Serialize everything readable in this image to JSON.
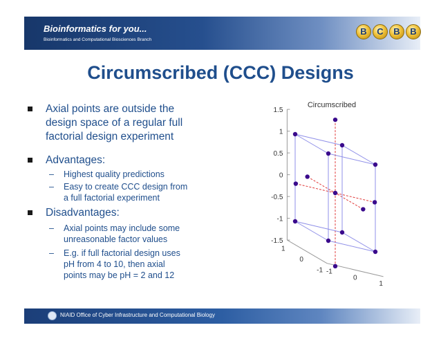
{
  "header": {
    "title": "Bioinformatics for you...",
    "subtitle": "Bioinformatics and Computational Biosciences Branch",
    "logo_letters": [
      "B",
      "C",
      "B",
      "B"
    ]
  },
  "slide_title": "Circumscribed (CCC) Designs",
  "bullets": {
    "b1": {
      "lines": [
        "Axial points are outside the",
        "design space of a regular full",
        "factorial design experiment"
      ]
    },
    "b2": {
      "text": "Advantages:"
    },
    "b2_sub1": {
      "text": "Highest quality predictions"
    },
    "b2_sub2": {
      "lines": [
        "Easy to create CCC design from",
        "a full factorial experiment"
      ]
    },
    "b3": {
      "text": "Disadvantages:"
    },
    "b3_sub1": {
      "lines": [
        "Axial points may include some",
        "unreasonable factor values"
      ]
    },
    "b3_sub2": {
      "lines": [
        "E.g. if full factorial design uses",
        "pH from 4 to 10, then axial",
        "points may be pH = 2 and 12"
      ]
    },
    "dash": "–"
  },
  "chart_data": {
    "type": "scatter",
    "title": "Circumscribed",
    "zlim": [
      -1.5,
      1.5
    ],
    "z_ticks": [
      "1.5",
      "1",
      "0.5",
      "0",
      "-0.5",
      "-1",
      "-1.5"
    ],
    "y_ticks": [
      "1",
      "0",
      "-1"
    ],
    "x_ticks": [
      "-1",
      "0",
      "1"
    ],
    "cube_corners": [
      [
        -1,
        -1,
        -1
      ],
      [
        1,
        -1,
        -1
      ],
      [
        -1,
        1,
        -1
      ],
      [
        1,
        1,
        -1
      ],
      [
        -1,
        -1,
        1
      ],
      [
        1,
        -1,
        1
      ],
      [
        -1,
        1,
        1
      ],
      [
        1,
        1,
        1
      ]
    ],
    "axial_points": [
      [
        0,
        0,
        1.68
      ],
      [
        0,
        0,
        -1.68
      ],
      [
        -1.68,
        0,
        0
      ],
      [
        1.68,
        0,
        0
      ],
      [
        0,
        -1.68,
        0
      ],
      [
        0,
        1.68,
        0
      ]
    ],
    "center_point": [
      0,
      0,
      0
    ],
    "colors": {
      "points": "#3a0a8c",
      "cube": "#8f8fe8",
      "axial_lines": "#e03a3a",
      "axes": "#999999"
    }
  },
  "footer": {
    "text": "NIAID Office of Cyber Infrastructure and Computational Biology"
  }
}
